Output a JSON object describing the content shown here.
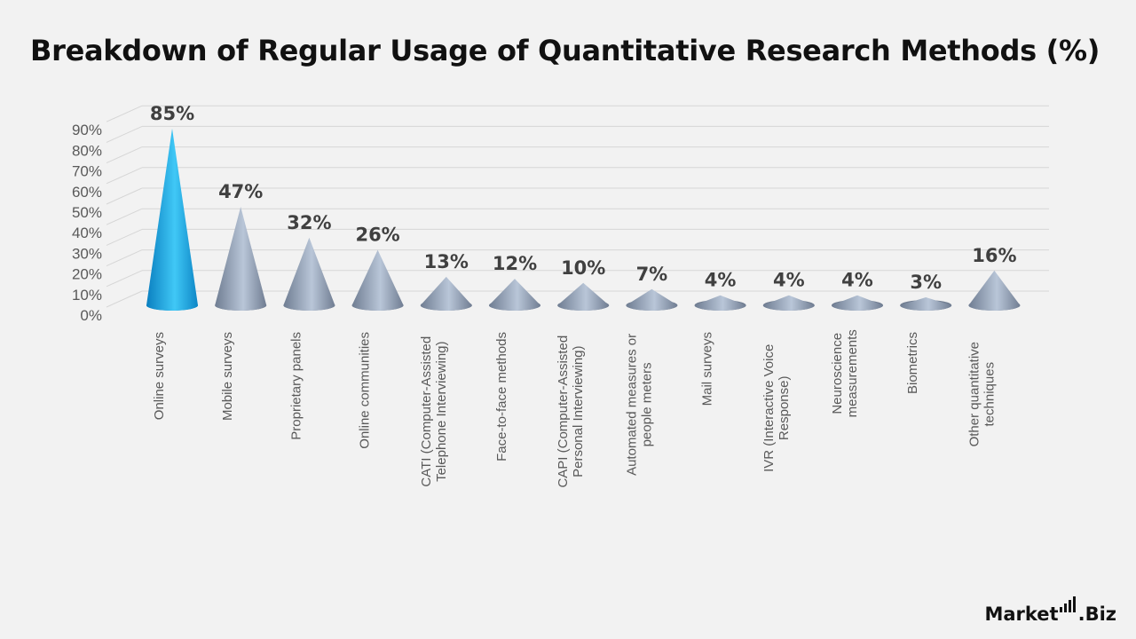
{
  "title": "Breakdown of Regular Usage of Quantitative Research Methods (%)",
  "logo": {
    "text_pre": "Market",
    "text_post": ".Biz"
  },
  "colors": {
    "highlight": "#1aa6e8",
    "cone": "#8a98ad",
    "grid": "#d6d6d6",
    "axis_text": "#595959",
    "label_text": "#404040"
  },
  "chart_data": {
    "type": "bar",
    "bar_shape": "cone",
    "categories": [
      "Online surveys",
      "Mobile surveys",
      "Proprietary panels",
      "Online communities",
      "CATI (Computer-Assisted Telephone Interviewing)",
      "Face-to-face methods",
      "CAPI (Computer-Assisted Personal Interviewing)",
      "Automated measures or people meters",
      "Mail surveys",
      "IVR (Interactive Voice Response)",
      "Neuroscience measurements",
      "Biometrics",
      "Other quantitative techniques"
    ],
    "values": [
      85,
      47,
      32,
      26,
      13,
      12,
      10,
      7,
      4,
      4,
      4,
      3,
      16
    ],
    "data_labels": [
      "85%",
      "47%",
      "32%",
      "26%",
      "13%",
      "12%",
      "10%",
      "7%",
      "4%",
      "4%",
      "4%",
      "3%",
      "16%"
    ],
    "highlighted_index": 0,
    "ylim": [
      0,
      90
    ],
    "yticks": [
      "0%",
      "10%",
      "20%",
      "30%",
      "40%",
      "50%",
      "60%",
      "70%",
      "80%",
      "90%"
    ],
    "grid": true,
    "legend": "none",
    "xlabel": "",
    "ylabel": ""
  }
}
